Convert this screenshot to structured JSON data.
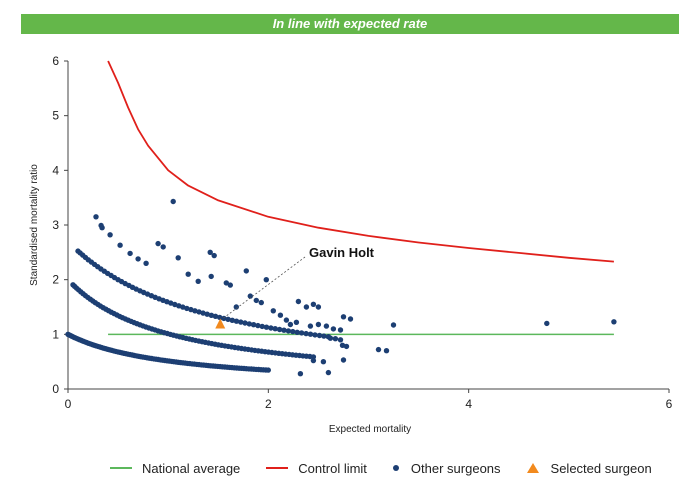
{
  "banner": {
    "text": "In line with expected rate",
    "color": "#64b74a"
  },
  "chart_data": {
    "type": "scatter",
    "title": "",
    "xlabel": "Expected mortality",
    "ylabel": "Standardised mortality ratio",
    "xlim": [
      0,
      6
    ],
    "ylim": [
      0,
      6
    ],
    "xticks": [
      0,
      2,
      4,
      6
    ],
    "yticks": [
      0,
      1,
      2,
      3,
      4,
      5,
      6
    ],
    "grid": false,
    "legend_position": "bottom",
    "colors": {
      "national": "#5cb85c",
      "control": "#e0201b",
      "others": "#1d3f73",
      "selected": "#f28a1e"
    },
    "national_average": {
      "name": "National average",
      "x": [
        0.4,
        5.45
      ],
      "y": [
        1,
        1
      ]
    },
    "control_limit": {
      "name": "Control limit",
      "x": [
        0.4,
        0.5,
        0.6,
        0.7,
        0.8,
        1.0,
        1.2,
        1.5,
        2.0,
        2.5,
        3.0,
        3.5,
        4.0,
        4.5,
        5.0,
        5.45
      ],
      "y": [
        6.0,
        5.6,
        5.15,
        4.75,
        4.45,
        4.0,
        3.72,
        3.45,
        3.15,
        2.95,
        2.8,
        2.68,
        2.58,
        2.49,
        2.4,
        2.33
      ]
    },
    "other_surgeons": {
      "name": "Other surgeons",
      "curves": [
        {
          "k": 0.05,
          "x_from": 0.0,
          "x_to": 2.0,
          "count": 95
        },
        {
          "k": 0.1,
          "x_from": 0.05,
          "x_to": 2.45,
          "count": 80
        },
        {
          "k": 0.2,
          "x_from": 0.1,
          "x_to": 2.6,
          "count": 65
        }
      ],
      "points": [
        [
          0.28,
          3.15
        ],
        [
          0.33,
          2.99
        ],
        [
          0.34,
          2.95
        ],
        [
          0.42,
          2.82
        ],
        [
          0.52,
          2.63
        ],
        [
          0.62,
          2.48
        ],
        [
          0.7,
          2.38
        ],
        [
          0.78,
          2.3
        ],
        [
          0.9,
          2.66
        ],
        [
          0.95,
          2.6
        ],
        [
          1.05,
          3.43
        ],
        [
          1.1,
          2.4
        ],
        [
          1.2,
          2.1
        ],
        [
          1.3,
          1.97
        ],
        [
          1.42,
          2.5
        ],
        [
          1.46,
          2.44
        ],
        [
          1.43,
          2.06
        ],
        [
          1.58,
          1.94
        ],
        [
          1.62,
          1.9
        ],
        [
          1.68,
          1.5
        ],
        [
          1.78,
          2.16
        ],
        [
          1.82,
          1.7
        ],
        [
          1.88,
          1.62
        ],
        [
          1.98,
          2.0
        ],
        [
          1.93,
          1.58
        ],
        [
          2.05,
          1.43
        ],
        [
          2.12,
          1.35
        ],
        [
          2.18,
          1.26
        ],
        [
          2.22,
          1.18
        ],
        [
          2.3,
          1.6
        ],
        [
          2.38,
          1.5
        ],
        [
          2.45,
          1.55
        ],
        [
          2.5,
          1.5
        ],
        [
          2.28,
          1.22
        ],
        [
          2.42,
          1.15
        ],
        [
          2.5,
          1.18
        ],
        [
          2.58,
          1.15
        ],
        [
          2.65,
          1.1
        ],
        [
          2.72,
          1.08
        ],
        [
          2.75,
          1.32
        ],
        [
          2.82,
          1.28
        ],
        [
          2.62,
          0.93
        ],
        [
          2.67,
          0.92
        ],
        [
          2.72,
          0.9
        ],
        [
          2.74,
          0.8
        ],
        [
          2.78,
          0.78
        ],
        [
          2.75,
          0.53
        ],
        [
          2.32,
          0.28
        ],
        [
          2.55,
          0.5
        ],
        [
          2.6,
          0.3
        ],
        [
          2.45,
          0.52
        ],
        [
          3.1,
          0.72
        ],
        [
          3.18,
          0.7
        ],
        [
          3.25,
          1.17
        ],
        [
          4.78,
          1.2
        ],
        [
          5.45,
          1.23
        ]
      ]
    },
    "selected_surgeon": {
      "name": "Selected surgeon",
      "label": "Gavin Holt",
      "x": 1.52,
      "y": 1.18
    }
  }
}
